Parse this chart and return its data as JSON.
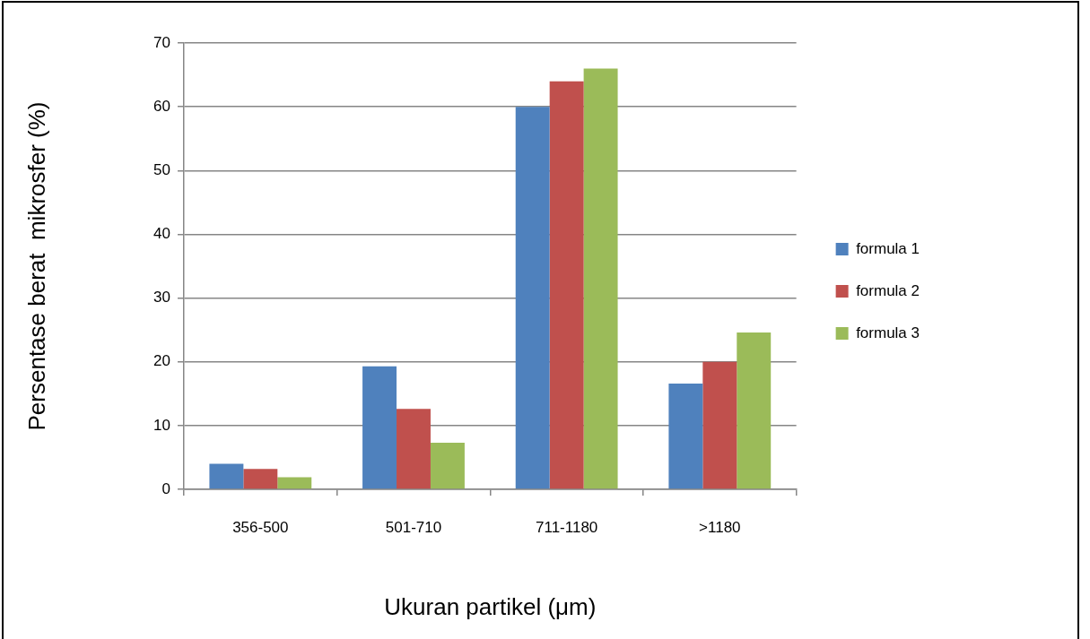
{
  "chart_data": {
    "type": "bar",
    "xlabel": "Ukuran partikel (μm)",
    "ylabel": "Persentase berat  mikrosfer (%)",
    "categories": [
      "356-500",
      "501-710",
      "711-1180",
      ">1180"
    ],
    "series": [
      {
        "name": "formula 1",
        "color": "#4f81bd",
        "values": [
          4.0,
          19.3,
          60,
          16.6
        ]
      },
      {
        "name": "formula 2",
        "color": "#c0504d",
        "values": [
          3.2,
          12.6,
          64,
          20
        ]
      },
      {
        "name": "formula 3",
        "color": "#9bbb59",
        "values": [
          1.9,
          7.3,
          66,
          24.6
        ]
      }
    ],
    "ylim": [
      0,
      70
    ],
    "yticks": [
      0,
      10,
      20,
      30,
      40,
      50,
      60,
      70
    ],
    "grid": "y",
    "legend": "right"
  }
}
